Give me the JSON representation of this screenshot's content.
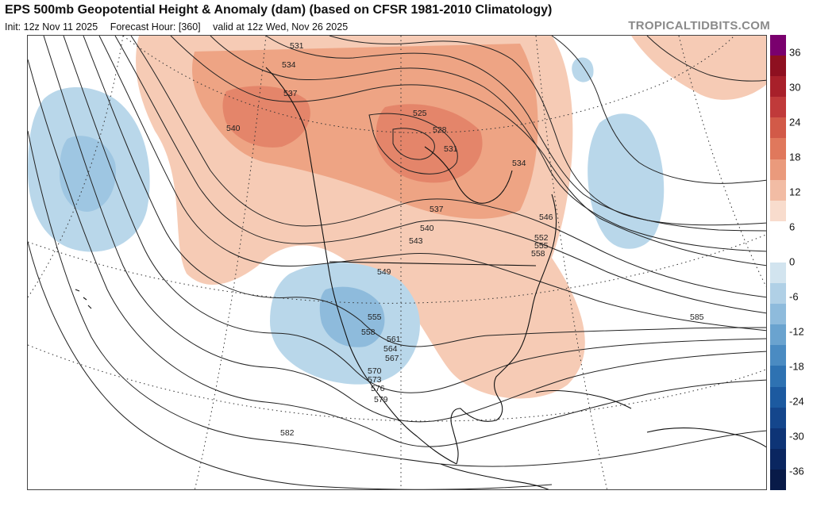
{
  "header": {
    "title": "EPS 500mb Geopotential Height & Anomaly (dam) (based on CFSR 1981-2010 Climatology)",
    "init": "Init: 12z Nov 11 2025",
    "forecast_hour": "Forecast Hour: [360]",
    "valid": "valid at 12z Wed, Nov 26 2025",
    "brand": "TROPICALTIDBITS.COM"
  },
  "colorbar": {
    "ticks": [
      "36",
      "30",
      "24",
      "18",
      "12",
      "6",
      "0",
      "-6",
      "-12",
      "-18",
      "-24",
      "-30",
      "-36"
    ],
    "colors": [
      "#7a006e",
      "#8e1020",
      "#a8202a",
      "#c03a3a",
      "#d25a48",
      "#e0785c",
      "#ea9a7c",
      "#f2bca4",
      "#f8dccd",
      "#ffffff",
      "#ffffff",
      "#d2e4ef",
      "#b0d0e6",
      "#8ebbdc",
      "#6aa3cf",
      "#4a8bc2",
      "#2e72b2",
      "#1c5aa0",
      "#14468c",
      "#0e3476",
      "#0a2660",
      "#081a48"
    ]
  },
  "map": {
    "contour_labels": [
      {
        "text": "531"
      },
      {
        "text": "534"
      },
      {
        "text": "537"
      },
      {
        "text": "540"
      },
      {
        "text": "525"
      },
      {
        "text": "528"
      },
      {
        "text": "531"
      },
      {
        "text": "534"
      },
      {
        "text": "537"
      },
      {
        "text": "540"
      },
      {
        "text": "543"
      },
      {
        "text": "546"
      },
      {
        "text": "549"
      },
      {
        "text": "552"
      },
      {
        "text": "555"
      },
      {
        "text": "558"
      },
      {
        "text": "555"
      },
      {
        "text": "558"
      },
      {
        "text": "561"
      },
      {
        "text": "564"
      },
      {
        "text": "567"
      },
      {
        "text": "570"
      },
      {
        "text": "573"
      },
      {
        "text": "576"
      },
      {
        "text": "579"
      },
      {
        "text": "582"
      },
      {
        "text": "585"
      }
    ]
  }
}
